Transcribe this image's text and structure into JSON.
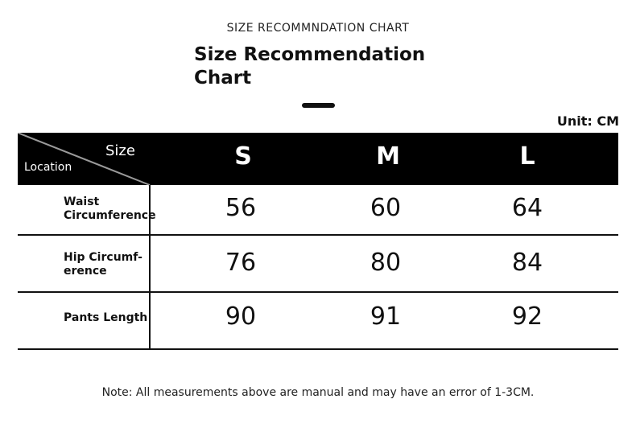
{
  "header": {
    "caption": "SIZE RECOMMNDATION CHART",
    "title": [
      "Size Recommendation",
      "Chart"
    ],
    "unit": "Unit: CM"
  },
  "table": {
    "corner_top": "Size",
    "corner_bottom": "Location",
    "columns": [
      "S",
      "M",
      "L"
    ],
    "rows": [
      {
        "label": [
          "Waist",
          "Circumference"
        ],
        "values": [
          56,
          60,
          64
        ]
      },
      {
        "label": [
          "Hip Circumf-",
          "erence"
        ],
        "values": [
          76,
          80,
          84
        ]
      },
      {
        "label": [
          "Pants Length"
        ],
        "values": [
          90,
          91,
          92
        ]
      }
    ]
  },
  "note": "Note: All measurements above are manual and may have an error of 1-3CM."
}
